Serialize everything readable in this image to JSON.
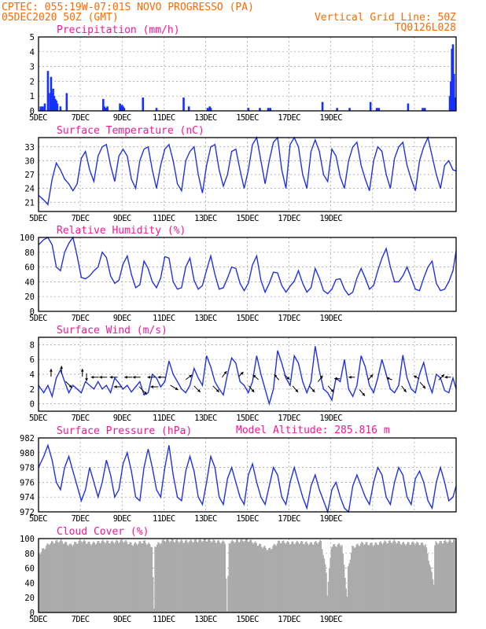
{
  "header": {
    "station": "CPTEC:   055:19W-07:01S  NOVO PROGRESSO (PA)",
    "init_time": "05DEC2020 50Z (GMT)",
    "grid_line": "Vertical Grid Line: 50Z",
    "run_id": "TQ0126L028"
  },
  "model_altitude": "Model Altitude: 285.816 m",
  "x_ticks": [
    "5DEC",
    "7DEC",
    "9DEC",
    "11DEC",
    "13DEC",
    "15DEC",
    "17DEC",
    "19DEC"
  ],
  "colors": {
    "series": "#2233dd",
    "precip": "#1530ff",
    "cloud": "#ababab",
    "title": "#ff1493",
    "header": "#ff6a00"
  },
  "chart_data": [
    {
      "type": "bar",
      "id": "precip",
      "title": "Precipitation (mm/h)",
      "ylim": [
        0,
        5
      ],
      "yticks": [
        "0",
        "1",
        "2",
        "3",
        "4",
        "5"
      ],
      "x_days": [
        0.1,
        0.2,
        0.3,
        0.45,
        0.55,
        0.6,
        0.65,
        0.7,
        0.75,
        0.8,
        0.85,
        0.9,
        1.05,
        1.35,
        3.1,
        3.15,
        3.2,
        3.25,
        3.3,
        3.9,
        3.95,
        4.0,
        4.05,
        4.1,
        5.0,
        5.65,
        6.95,
        7.2,
        8.1,
        8.2,
        8.25,
        10.05,
        10.6,
        11.0,
        11.1,
        13.6,
        14.3,
        14.9,
        15.9,
        16.2,
        16.3,
        17.7,
        18.4,
        18.5,
        19.7,
        19.75,
        19.8,
        19.85,
        19.9,
        19.95
      ],
      "values": [
        0.3,
        0.3,
        0.5,
        2.7,
        1.2,
        2.3,
        1.2,
        1.5,
        1.0,
        0.8,
        0.7,
        0.5,
        0.3,
        1.2,
        0.8,
        0.3,
        0.2,
        0.2,
        0.3,
        0.5,
        0.3,
        0.4,
        0.3,
        0.2,
        0.9,
        0.2,
        0.9,
        0.3,
        0.2,
        0.3,
        0.2,
        0.2,
        0.2,
        0.2,
        0.2,
        0.6,
        0.2,
        0.2,
        0.6,
        0.2,
        0.2,
        0.5,
        0.2,
        0.2,
        1.0,
        2.0,
        4.2,
        4.5,
        2.5,
        0.9
      ]
    },
    {
      "type": "line",
      "id": "temp",
      "title": "Surface Temperature (nC)",
      "ylim": [
        19,
        35
      ],
      "yticks": [
        "21",
        "24",
        "27",
        "30",
        "33"
      ],
      "x_days": [
        0,
        0.25,
        0.45,
        0.65,
        0.85,
        1.05,
        1.25,
        1.45,
        1.65,
        1.85,
        2.05,
        2.25,
        2.45,
        2.65,
        2.85,
        3.05,
        3.25,
        3.45,
        3.65,
        3.85,
        4.05,
        4.25,
        4.45,
        4.65,
        4.85,
        5.05,
        5.25,
        5.45,
        5.65,
        5.85,
        6.05,
        6.25,
        6.45,
        6.65,
        6.85,
        7.05,
        7.25,
        7.45,
        7.65,
        7.85,
        8.05,
        8.25,
        8.45,
        8.65,
        8.85,
        9.05,
        9.25,
        9.45,
        9.65,
        9.85,
        10.05,
        10.25,
        10.45,
        10.65,
        10.85,
        11.05,
        11.25,
        11.45,
        11.65,
        11.85,
        12.05,
        12.25,
        12.45,
        12.65,
        12.85,
        13.05,
        13.25,
        13.45,
        13.65,
        13.85,
        14.05,
        14.25,
        14.45,
        14.65,
        14.85,
        15.05,
        15.25,
        15.45,
        15.65,
        15.85,
        16.05,
        16.25,
        16.45,
        16.65,
        16.85,
        17.05,
        17.25,
        17.45,
        17.65,
        17.85,
        18.05,
        18.25,
        18.45,
        18.65,
        18.85,
        19.05,
        19.25,
        19.45,
        19.65,
        19.85,
        20.0
      ],
      "values": [
        22.5,
        21.5,
        20.5,
        26,
        29.5,
        28,
        26,
        25,
        23.5,
        25,
        30.5,
        32,
        28,
        25.5,
        31,
        33,
        33.5,
        29,
        25.5,
        31,
        32.5,
        31,
        26,
        24,
        30,
        32.5,
        33,
        28,
        24,
        29,
        32.5,
        33.5,
        30,
        25,
        23.5,
        30,
        32,
        33,
        27,
        23,
        29,
        33,
        33.5,
        28,
        24.5,
        27,
        32,
        32.5,
        28,
        24,
        28,
        33.5,
        35,
        30,
        25,
        30,
        34,
        35,
        28,
        24,
        33.5,
        35,
        33,
        27,
        24,
        32,
        34.5,
        32,
        27,
        25.5,
        32.5,
        31,
        26.5,
        24,
        30,
        33,
        34,
        29,
        26,
        23.5,
        30,
        33,
        32,
        27,
        24,
        30.5,
        33,
        34,
        29,
        26,
        23.5,
        30,
        33,
        35,
        31,
        27,
        24,
        29,
        30,
        28,
        27.8
      ]
    },
    {
      "type": "line",
      "id": "rh",
      "title": "Relative Humidity (%)",
      "ylim": [
        0,
        100
      ],
      "yticks": [
        "0",
        "20",
        "40",
        "60",
        "80",
        "100"
      ],
      "x_days": [
        0,
        0.25,
        0.45,
        0.65,
        0.85,
        1.05,
        1.25,
        1.45,
        1.65,
        1.85,
        2.05,
        2.25,
        2.45,
        2.65,
        2.85,
        3.05,
        3.25,
        3.45,
        3.65,
        3.85,
        4.05,
        4.25,
        4.45,
        4.65,
        4.85,
        5.05,
        5.25,
        5.45,
        5.65,
        5.85,
        6.05,
        6.25,
        6.45,
        6.65,
        6.85,
        7.05,
        7.25,
        7.45,
        7.65,
        7.85,
        8.05,
        8.25,
        8.45,
        8.65,
        8.85,
        9.05,
        9.25,
        9.45,
        9.65,
        9.85,
        10.05,
        10.25,
        10.45,
        10.65,
        10.85,
        11.05,
        11.25,
        11.45,
        11.65,
        11.85,
        12.05,
        12.25,
        12.45,
        12.65,
        12.85,
        13.05,
        13.25,
        13.45,
        13.65,
        13.85,
        14.05,
        14.25,
        14.45,
        14.65,
        14.85,
        15.05,
        15.25,
        15.45,
        15.65,
        15.85,
        16.05,
        16.25,
        16.45,
        16.65,
        16.85,
        17.05,
        17.25,
        17.45,
        17.65,
        17.85,
        18.05,
        18.25,
        18.45,
        18.65,
        18.85,
        19.05,
        19.25,
        19.45,
        19.65,
        19.85,
        20.0
      ],
      "values": [
        90,
        97,
        100,
        90,
        60,
        55,
        80,
        92,
        100,
        75,
        46,
        44,
        48,
        55,
        60,
        80,
        73,
        48,
        38,
        42,
        64,
        75,
        50,
        32,
        36,
        68,
        58,
        40,
        32,
        45,
        74,
        72,
        40,
        30,
        32,
        60,
        72,
        42,
        30,
        35,
        56,
        75,
        50,
        30,
        32,
        45,
        60,
        58,
        38,
        28,
        38,
        63,
        75,
        42,
        26,
        38,
        53,
        52,
        35,
        26,
        34,
        41,
        55,
        38,
        26,
        32,
        58,
        45,
        28,
        24,
        30,
        43,
        44,
        30,
        22,
        26,
        45,
        58,
        45,
        30,
        35,
        55,
        72,
        85,
        60,
        40,
        40,
        48,
        60,
        45,
        30,
        28,
        45,
        60,
        68,
        38,
        28,
        30,
        40,
        55,
        82
      ]
    },
    {
      "type": "line",
      "id": "wind",
      "title": "Surface Wind (m/s)",
      "ylim": [
        -1,
        9
      ],
      "yticks": [
        "0",
        "2",
        "4",
        "6",
        "8"
      ],
      "x_days": [
        0,
        0.25,
        0.45,
        0.65,
        0.85,
        1.05,
        1.25,
        1.45,
        1.65,
        1.85,
        2.05,
        2.25,
        2.45,
        2.65,
        2.85,
        3.05,
        3.25,
        3.45,
        3.65,
        3.85,
        4.05,
        4.25,
        4.45,
        4.65,
        4.85,
        5.05,
        5.25,
        5.45,
        5.65,
        5.85,
        6.05,
        6.25,
        6.45,
        6.65,
        6.85,
        7.05,
        7.25,
        7.45,
        7.65,
        7.85,
        8.05,
        8.25,
        8.45,
        8.65,
        8.85,
        9.05,
        9.25,
        9.45,
        9.65,
        9.85,
        10.05,
        10.25,
        10.45,
        10.65,
        10.85,
        11.05,
        11.25,
        11.45,
        11.65,
        11.85,
        12.05,
        12.25,
        12.45,
        12.65,
        12.85,
        13.05,
        13.25,
        13.45,
        13.65,
        13.85,
        14.05,
        14.25,
        14.45,
        14.65,
        14.85,
        15.05,
        15.25,
        15.45,
        15.65,
        15.85,
        16.05,
        16.25,
        16.45,
        16.65,
        16.85,
        17.05,
        17.25,
        17.45,
        17.65,
        17.85,
        18.05,
        18.25,
        18.45,
        18.65,
        18.85,
        19.05,
        19.25,
        19.45,
        19.65,
        19.85,
        20.0
      ],
      "values": [
        2.5,
        1.5,
        2.5,
        1,
        3.5,
        4.6,
        3,
        1.5,
        2.5,
        2,
        1.5,
        3,
        2.5,
        2,
        3,
        2,
        2.5,
        1.5,
        3.5,
        2.8,
        2,
        2.5,
        1.6,
        2.3,
        3,
        1.2,
        1.5,
        4,
        3.5,
        2.3,
        3,
        5.8,
        4,
        3,
        2,
        1.5,
        2.5,
        4.8,
        3.5,
        2.5,
        6.5,
        5,
        3,
        2,
        1.2,
        4,
        6.2,
        5.5,
        3,
        2.5,
        1.5,
        3,
        6.5,
        4,
        2,
        0,
        2,
        7.2,
        5.5,
        3.5,
        2.5,
        6.5,
        5.5,
        3,
        1.5,
        3,
        7.8,
        4.5,
        2,
        1.5,
        0.5,
        3.5,
        3,
        6,
        2,
        1,
        2.5,
        6.5,
        5,
        2.5,
        1.5,
        3.5,
        6,
        4,
        2,
        1.5,
        2.5,
        6.6,
        3.5,
        2,
        1.5,
        4,
        5.6,
        3,
        1.5,
        4,
        3.5,
        1.8,
        1.5,
        3.5,
        2
      ]
    },
    {
      "type": "line",
      "id": "pres",
      "title": "Surface Pressure (hPa)",
      "ylim": [
        972,
        982
      ],
      "yticks": [
        "972",
        "974",
        "976",
        "978",
        "980",
        "982"
      ],
      "x_days": [
        0,
        0.25,
        0.45,
        0.65,
        0.85,
        1.05,
        1.25,
        1.45,
        1.65,
        1.85,
        2.05,
        2.25,
        2.45,
        2.65,
        2.85,
        3.05,
        3.25,
        3.45,
        3.65,
        3.85,
        4.05,
        4.25,
        4.45,
        4.65,
        4.85,
        5.05,
        5.25,
        5.45,
        5.65,
        5.85,
        6.05,
        6.25,
        6.45,
        6.65,
        6.85,
        7.05,
        7.25,
        7.45,
        7.65,
        7.85,
        8.05,
        8.25,
        8.45,
        8.65,
        8.85,
        9.05,
        9.25,
        9.45,
        9.65,
        9.85,
        10.05,
        10.25,
        10.45,
        10.65,
        10.85,
        11.05,
        11.25,
        11.45,
        11.65,
        11.85,
        12.05,
        12.25,
        12.45,
        12.65,
        12.85,
        13.05,
        13.25,
        13.45,
        13.65,
        13.85,
        14.05,
        14.25,
        14.45,
        14.65,
        14.85,
        15.05,
        15.25,
        15.45,
        15.65,
        15.85,
        16.05,
        16.25,
        16.45,
        16.65,
        16.85,
        17.05,
        17.25,
        17.45,
        17.65,
        17.85,
        18.05,
        18.25,
        18.45,
        18.65,
        18.85,
        19.05,
        19.25,
        19.45,
        19.65,
        19.85,
        20.0
      ],
      "values": [
        978,
        979.5,
        981,
        979,
        976,
        975,
        978,
        979.5,
        977.5,
        975.5,
        973.5,
        975,
        978,
        976,
        974,
        976,
        979,
        977,
        974,
        975,
        978.5,
        980,
        977.5,
        974,
        973.5,
        978,
        980.5,
        978,
        975,
        974,
        978,
        981,
        977,
        974,
        973.5,
        977.5,
        979.5,
        977.5,
        974,
        973,
        976,
        979.5,
        978,
        974,
        973,
        976.5,
        978,
        976,
        974,
        973,
        977,
        978.5,
        976,
        974,
        973,
        975.5,
        978,
        977,
        974,
        973,
        976,
        978,
        976,
        974,
        972.5,
        975.5,
        977,
        975,
        973.5,
        972,
        975,
        976,
        974,
        972.5,
        972,
        975.5,
        977,
        975.5,
        974,
        973,
        976,
        978,
        977,
        974,
        973,
        976,
        978,
        977,
        974,
        973,
        976.5,
        977.5,
        976,
        973.5,
        972.5,
        976,
        978,
        976,
        973.5,
        974,
        975.5
      ]
    },
    {
      "type": "area",
      "id": "cloud",
      "title": "Cloud Cover (%)",
      "ylim": [
        0,
        100
      ],
      "yticks": [
        "0",
        "20",
        "40",
        "60",
        "80",
        "100"
      ],
      "x_days": [
        0,
        0.5,
        1.0,
        1.5,
        2.0,
        2.5,
        3.0,
        3.5,
        4.0,
        4.5,
        5.0,
        5.4,
        5.5,
        5.55,
        6.0,
        6.5,
        7.0,
        7.5,
        8.0,
        8.5,
        8.9,
        9.0,
        9.1,
        9.5,
        10.0,
        10.5,
        11.0,
        11.5,
        12.0,
        12.5,
        13.0,
        13.5,
        13.75,
        13.8,
        14.0,
        14.5,
        14.75,
        14.8,
        15.0,
        15.5,
        16.0,
        16.5,
        17.0,
        17.5,
        18.0,
        18.5,
        18.9,
        18.95,
        19.0,
        19.5,
        20.0
      ],
      "values": [
        80,
        94,
        97,
        91,
        97,
        93,
        96,
        95,
        97,
        92,
        96,
        90,
        3,
        90,
        98,
        97,
        96,
        97,
        98,
        96,
        95,
        0,
        95,
        97,
        98,
        92,
        85,
        96,
        94,
        95,
        93,
        96,
        55,
        25,
        90,
        92,
        20,
        60,
        88,
        94,
        92,
        95,
        96,
        93,
        94,
        92,
        40,
        90,
        94,
        96,
        97
      ]
    }
  ]
}
